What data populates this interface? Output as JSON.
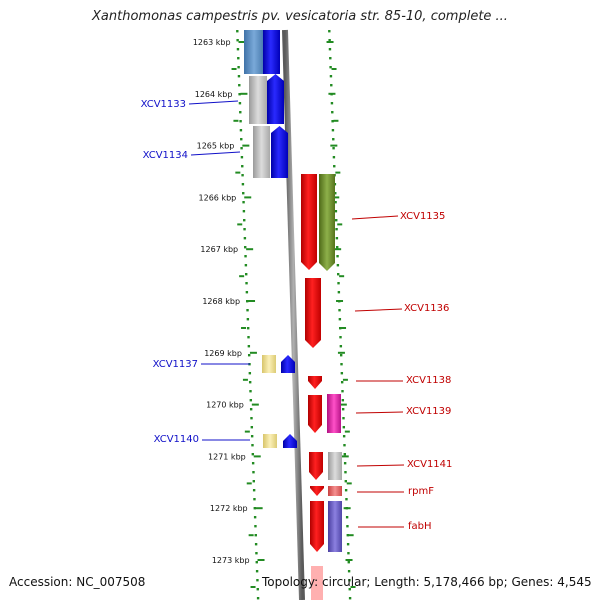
{
  "title": "Xanthomonas campestris pv. vesicatoria str. 85-10, complete ...",
  "footer": {
    "accession": "Accession: NC_007508",
    "topology": "Topology: circular; Length: 5,178,466 bp; Genes: 4,545"
  },
  "ruler": {
    "unit": "kbp",
    "ticks": [
      {
        "label": "1263 kbp"
      },
      {
        "label": "1264 kbp"
      },
      {
        "label": "1265 kbp"
      },
      {
        "label": "1266 kbp"
      },
      {
        "label": "1267 kbp"
      },
      {
        "label": "1268 kbp"
      },
      {
        "label": "1269 kbp"
      },
      {
        "label": "1270 kbp"
      },
      {
        "label": "1271 kbp"
      },
      {
        "label": "1272 kbp"
      },
      {
        "label": "1273 kbp"
      }
    ]
  },
  "genes": {
    "reverse_strand_labels": [
      "XCV1133",
      "XCV1134",
      "XCV1137",
      "XCV1140"
    ],
    "forward_strand_labels": [
      "XCV1135",
      "XCV1136",
      "XCV1138",
      "XCV1139",
      "XCV1141",
      "rpmF",
      "fabH"
    ]
  },
  "colors": {
    "reverse_label": "#1010c8",
    "forward_label": "#c00000",
    "blue_feature": "#0000ee",
    "red_feature": "#ee0000",
    "steelblue_feature": "#5b8fc7",
    "grey_feature": "#bdbdbd",
    "olive_feature": "#6b8e23",
    "pale_yellow_feature": "#f3e6a0",
    "magenta_feature": "#e020a8",
    "pink_feature": "#e86060",
    "slate_feature": "#6a5acd",
    "ruler_dots": "#228b22",
    "backbone": "#7a7a7a"
  }
}
